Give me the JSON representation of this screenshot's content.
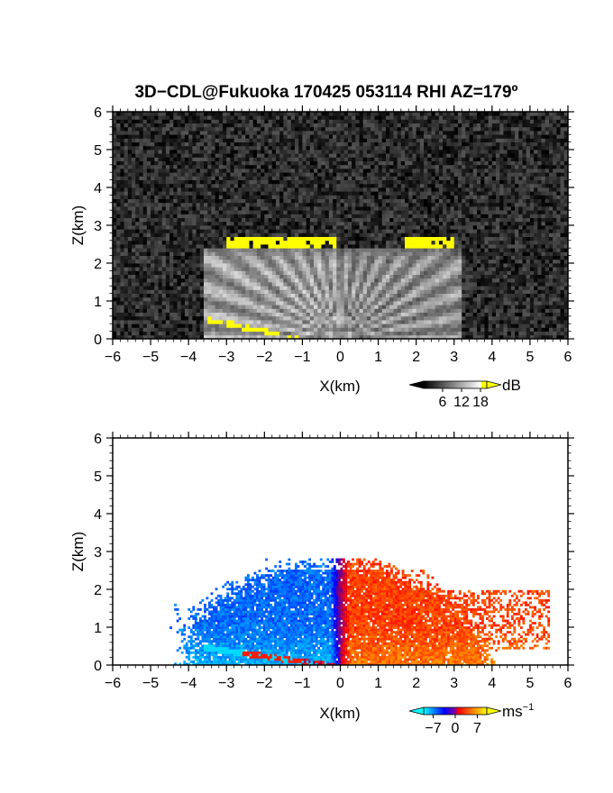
{
  "chart_data": [
    {
      "type": "heatmap",
      "panel": "reflectivity",
      "title": "3D−CDL@Fukuoka 170425 053114 RHI AZ=179º",
      "xlabel": "X(km)",
      "ylabel": "Z(km)",
      "xlim": [
        -6,
        6
      ],
      "ylim": [
        0,
        6
      ],
      "xticks": [
        "−6",
        "−5",
        "−4",
        "−3",
        "−2",
        "−1",
        "0",
        "1",
        "2",
        "3",
        "4",
        "5",
        "6"
      ],
      "yticks": [
        "0",
        "1",
        "2",
        "3",
        "4",
        "5",
        "6"
      ],
      "colorbar": {
        "unit": "dB",
        "ticks": [
          "6",
          "12",
          "18"
        ],
        "tick_values": [
          6,
          12,
          18
        ],
        "range": [
          0,
          20
        ],
        "colors": [
          "#000000",
          "#ffffff",
          "#ffff00"
        ]
      },
      "features": {
        "background_db": 3,
        "fan_top_km": 2.45,
        "fan_xrange_km": [
          -3.6,
          3.2
        ],
        "bright_layer": [
          {
            "x": [
              -3.0,
              -0.1
            ],
            "z": [
              2.45,
              2.75
            ],
            "db": 19
          },
          {
            "x": [
              1.7,
              3.0
            ],
            "z": [
              2.4,
              2.7
            ],
            "db": 19
          }
        ],
        "near_ground_return": {
          "x": [
            -3.5,
            -1.0
          ],
          "z": [
            0.0,
            0.55
          ],
          "db": 19
        }
      }
    },
    {
      "type": "heatmap",
      "panel": "doppler_velocity",
      "xlabel": "X(km)",
      "ylabel": "Z(km)",
      "xlim": [
        -6,
        6
      ],
      "ylim": [
        0,
        6
      ],
      "xticks": [
        "−6",
        "−5",
        "−4",
        "−3",
        "−2",
        "−1",
        "0",
        "1",
        "2",
        "3",
        "4",
        "5",
        "6"
      ],
      "yticks": [
        "0",
        "1",
        "2",
        "3",
        "4",
        "5",
        "6"
      ],
      "colorbar": {
        "unit": "ms",
        "unit_exp": "−1",
        "ticks": [
          "−7",
          "0",
          "7"
        ],
        "tick_values": [
          -7,
          0,
          7
        ],
        "range": [
          -10,
          10
        ],
        "colors": [
          "#00ffff",
          "#0000ff",
          "#ff0000",
          "#ffff00"
        ]
      },
      "features": {
        "left_side_velocity": -6,
        "right_side_velocity": 5,
        "echo_top_km": 2.8,
        "echo_xrange_km": [
          -4.5,
          5.5
        ],
        "near_ground_band": {
          "x": [
            -3.6,
            -0.1
          ],
          "z": [
            0.0,
            0.5
          ],
          "velocity_range": [
            -9,
            4
          ]
        }
      }
    }
  ]
}
